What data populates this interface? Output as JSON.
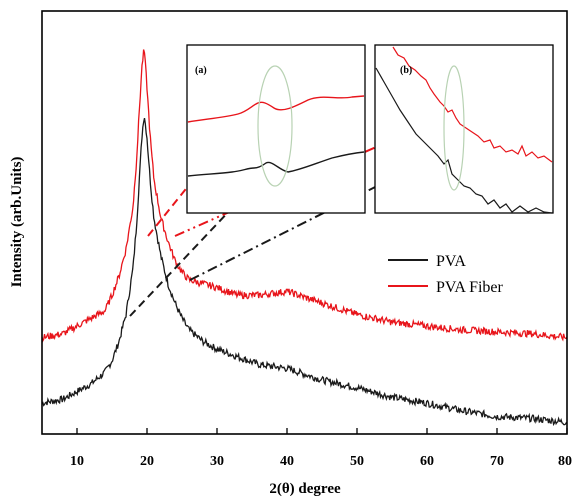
{
  "chart_data": {
    "type": "line",
    "xlabel": "2(θ) degree",
    "ylabel": "Intensity (arb.Units)",
    "xlim": [
      5,
      80
    ],
    "xticks": [
      10,
      20,
      30,
      40,
      50,
      60,
      70,
      80
    ],
    "grid": false,
    "legend_position": "center-right",
    "series": [
      {
        "name": "PVA",
        "color": "#1a1a1a",
        "x": [
          5,
          8,
          10,
          12,
          14,
          15,
          16,
          17,
          18,
          18.5,
          19,
          19.3,
          19.6,
          20,
          20.5,
          21,
          22,
          23,
          24,
          25,
          26,
          28,
          30,
          33,
          36,
          40,
          45,
          50,
          55,
          60,
          65,
          70,
          75,
          80
        ],
        "y": [
          0.07,
          0.08,
          0.1,
          0.12,
          0.15,
          0.18,
          0.23,
          0.3,
          0.42,
          0.53,
          0.68,
          0.77,
          0.82,
          0.76,
          0.64,
          0.55,
          0.45,
          0.38,
          0.33,
          0.29,
          0.26,
          0.23,
          0.21,
          0.19,
          0.17,
          0.16,
          0.13,
          0.11,
          0.085,
          0.07,
          0.05,
          0.035,
          0.03,
          0.02
        ]
      },
      {
        "name": "PVA Fiber",
        "color": "#e8151b",
        "x": [
          5,
          8,
          10,
          12,
          14,
          15,
          16,
          17,
          18,
          18.5,
          19,
          19.3,
          19.6,
          20,
          20.5,
          21,
          22,
          23,
          24,
          25,
          26,
          28,
          30,
          33,
          36,
          40,
          45,
          50,
          55,
          60,
          65,
          70,
          75,
          80
        ],
        "y": [
          0.24,
          0.25,
          0.27,
          0.29,
          0.31,
          0.35,
          0.4,
          0.47,
          0.58,
          0.7,
          0.86,
          0.95,
          0.99,
          0.89,
          0.75,
          0.65,
          0.55,
          0.49,
          0.44,
          0.41,
          0.39,
          0.38,
          0.37,
          0.35,
          0.35,
          0.36,
          0.33,
          0.3,
          0.28,
          0.27,
          0.26,
          0.255,
          0.25,
          0.24
        ]
      }
    ],
    "insets": [
      {
        "label": "(a)"
      },
      {
        "label": "(b)"
      }
    ]
  }
}
